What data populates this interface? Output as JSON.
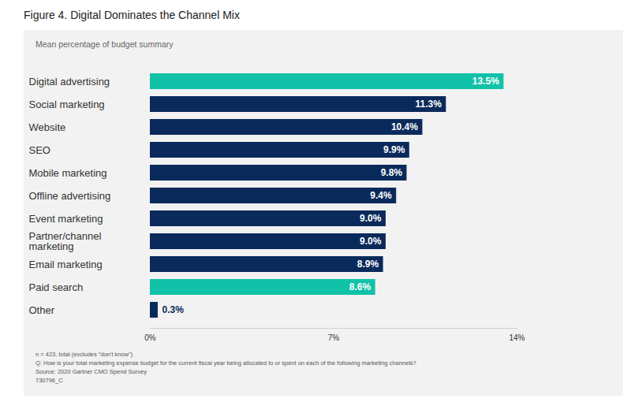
{
  "chart_data": {
    "type": "bar",
    "title": "Figure 4. Digital Dominates the Channel Mix",
    "subtitle": "Mean percentage of budget summary",
    "orientation": "horizontal",
    "categories": [
      "Digital advertising",
      "Social marketing",
      "Website",
      "SEO",
      "Mobile marketing",
      "Offline advertising",
      "Event marketing",
      "Partner/channel marketing",
      "Email marketing",
      "Paid search",
      "Other"
    ],
    "values": [
      13.5,
      11.3,
      10.4,
      9.9,
      9.8,
      9.4,
      9.0,
      9.0,
      8.9,
      8.6,
      0.3
    ],
    "value_labels": [
      "13.5%",
      "11.3%",
      "10.4%",
      "9.9%",
      "9.8%",
      "9.4%",
      "9.0%",
      "9.0%",
      "8.9%",
      "8.6%",
      "0.3%"
    ],
    "colors": [
      "#12c2a8",
      "#0b2a5c",
      "#0b2a5c",
      "#0b2a5c",
      "#0b2a5c",
      "#0b2a5c",
      "#0b2a5c",
      "#0b2a5c",
      "#0b2a5c",
      "#12c2a8",
      "#0b2a5c"
    ],
    "xlim": [
      0,
      14
    ],
    "xticks": [
      {
        "value": 0,
        "label": "0%"
      },
      {
        "value": 7,
        "label": "7%"
      },
      {
        "value": 14,
        "label": "14%"
      }
    ],
    "grid": false,
    "data_labels": true,
    "notes": [
      "n = 423, total (excludes \"don't know\")",
      "Q: How is your total marketing expense budget for the current fiscal year being allocated to or spent on each of the following marketing channels?",
      "Source: 2020 Gartner CMO Spend Survey",
      "730796_C"
    ]
  }
}
